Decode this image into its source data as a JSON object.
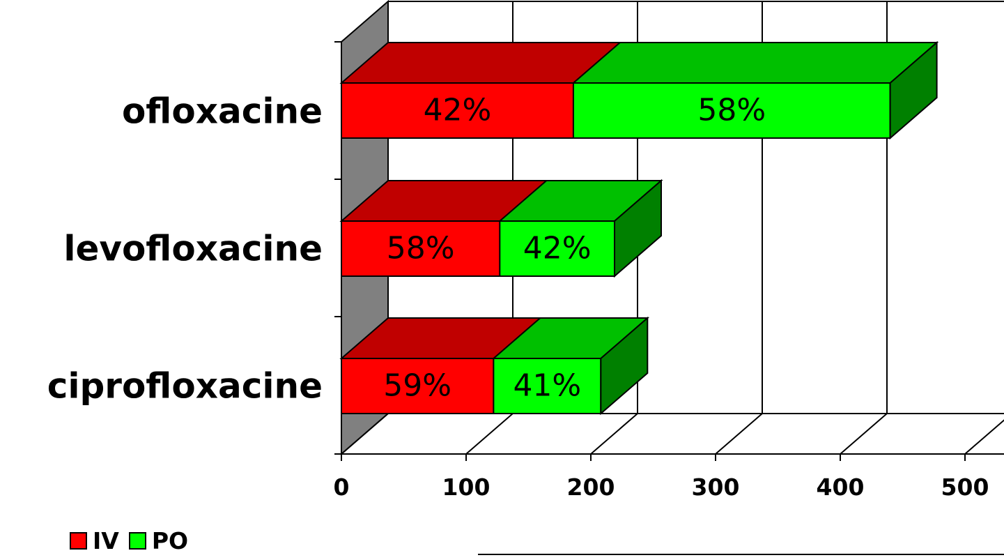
{
  "chart_data": {
    "type": "bar",
    "orientation": "horizontal",
    "stacked": true,
    "three_d": true,
    "categories": [
      "ciprofloxacine",
      "levofloxacine",
      "ofloxacine"
    ],
    "series": [
      {
        "name": "IV",
        "values": [
          122,
          127,
          186
        ],
        "labels": [
          "59%",
          "58%",
          "42%"
        ],
        "color": "#ff0000",
        "top_color": "#c00000",
        "side_color": "#800000"
      },
      {
        "name": "PO",
        "values": [
          86,
          92,
          254
        ],
        "labels": [
          "41%",
          "42%",
          "58%"
        ],
        "color": "#00ff00",
        "top_color": "#00c000",
        "side_color": "#008000"
      }
    ],
    "xticks": [
      "0",
      "100",
      "200",
      "300",
      "400",
      "500"
    ],
    "xlim": [
      0,
      500
    ],
    "grid": true,
    "legend": "bottom-left"
  }
}
